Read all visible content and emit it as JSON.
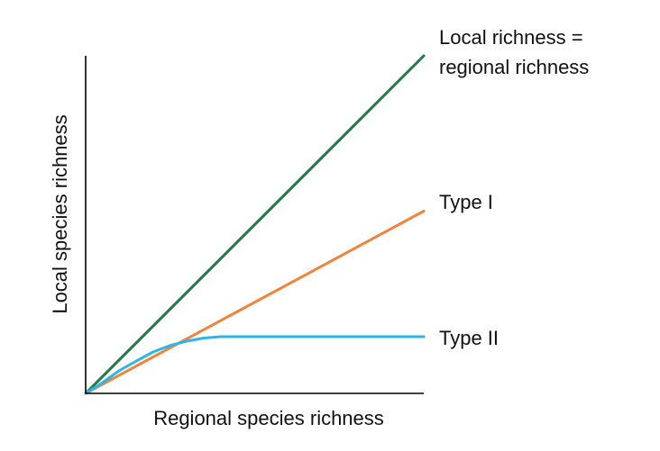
{
  "chart_data": {
    "type": "line",
    "title": "",
    "xlabel": "Regional species richness",
    "ylabel": "Local species richness",
    "xlim": [
      0,
      100
    ],
    "ylim": [
      0,
      100
    ],
    "grid": false,
    "legend": "none",
    "series": [
      {
        "name_lines": [
          "Local richness =",
          "regional richness"
        ],
        "color": "#1e7a43",
        "x": [
          0,
          100
        ],
        "y": [
          0,
          100
        ]
      },
      {
        "name": "Type I",
        "color": "#f0843a",
        "x": [
          0,
          100
        ],
        "y": [
          0,
          54
        ]
      },
      {
        "name": "Type II",
        "color": "#29b6e8",
        "x": [
          0,
          5,
          10,
          15,
          20,
          25,
          30,
          35,
          40,
          45,
          50,
          100
        ],
        "y": [
          0,
          3.2,
          6.8,
          9.6,
          12.3,
          14.2,
          15.5,
          16.4,
          16.8,
          16.8,
          16.8,
          16.8
        ]
      }
    ]
  }
}
